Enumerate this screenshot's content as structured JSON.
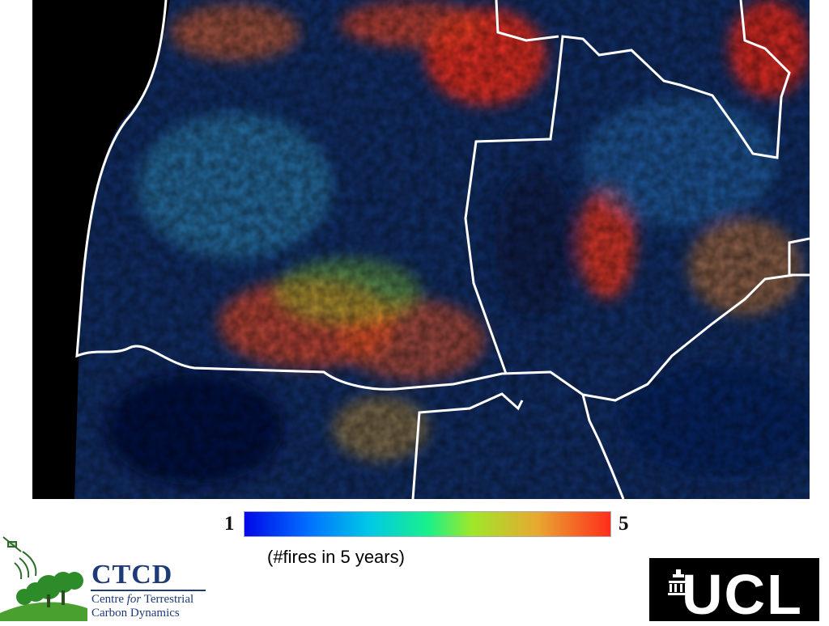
{
  "legend": {
    "min_label": "1",
    "max_label": "5",
    "caption": "(#fires in 5 years)",
    "colors": [
      "#0008e8",
      "#0073ff",
      "#00c8e6",
      "#18f08c",
      "#9ee82a",
      "#e8a830",
      "#ff2d1c"
    ]
  },
  "ctcd_logo": {
    "abbr": "CTCD",
    "line1_prefix": "Centre ",
    "line1_italic": "for",
    "line1_suffix": " Terrestrial",
    "line2": "Carbon Dynamics"
  },
  "ucl_logo": {
    "text": "UCL"
  },
  "map": {
    "background_color": "#0c1a3a",
    "ocean_color": "#000000",
    "border_color": "#ffffff"
  }
}
